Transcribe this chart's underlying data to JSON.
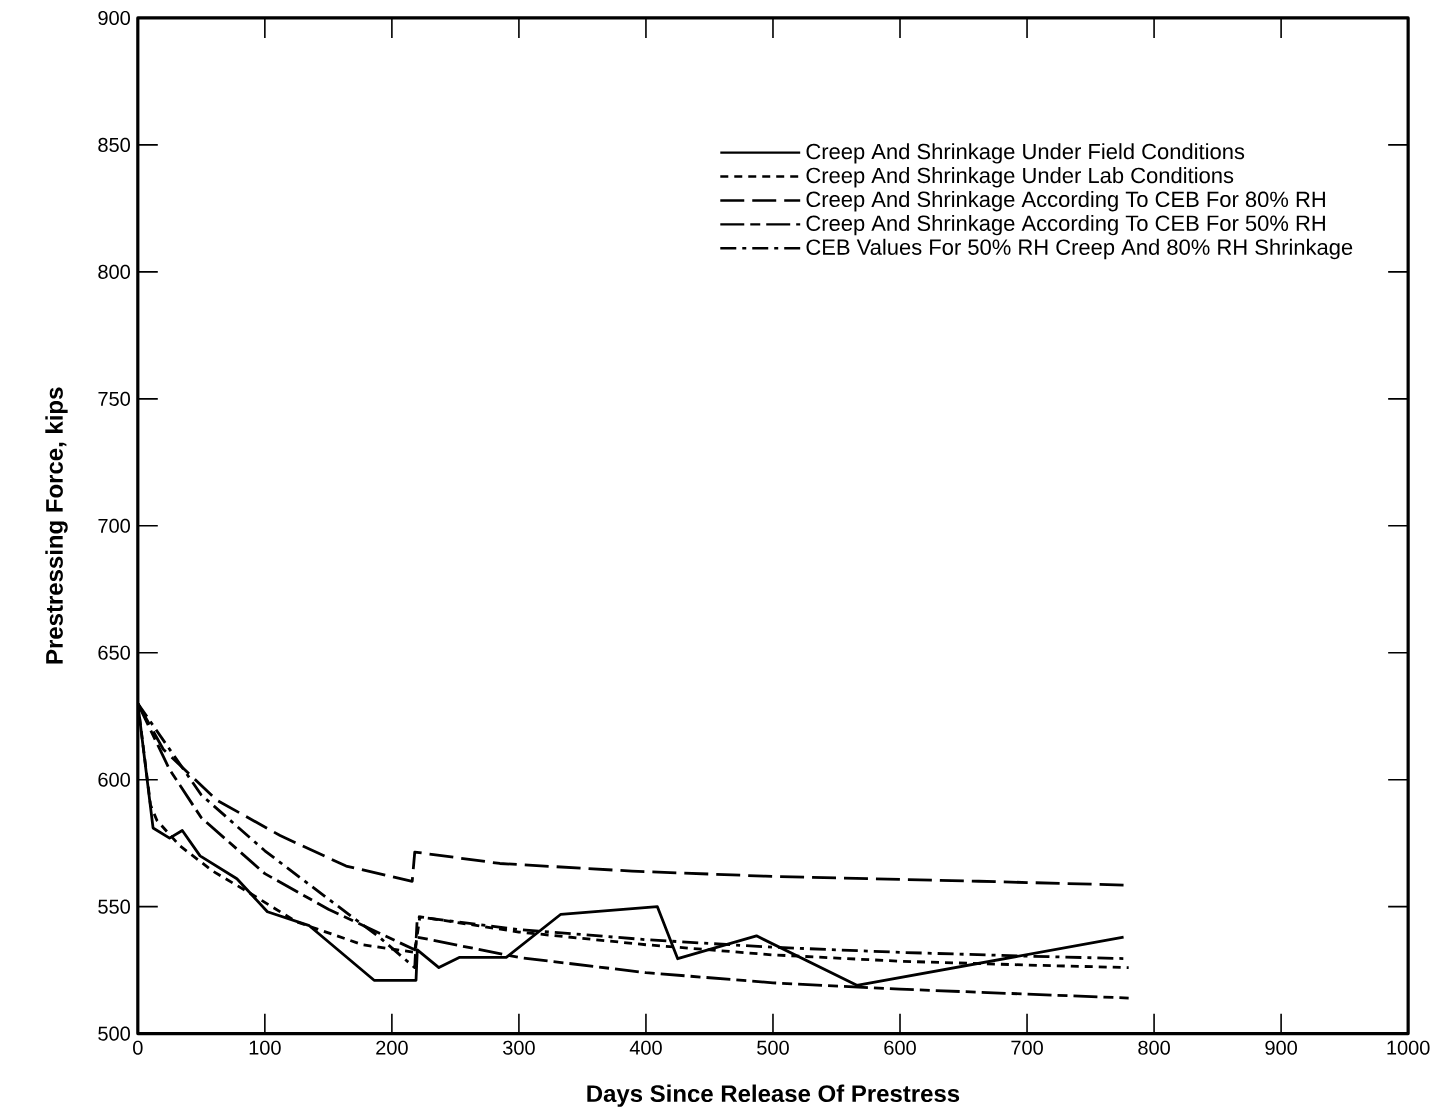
{
  "chart_data": {
    "type": "line",
    "xlabel": "Days Since Release Of Prestress",
    "ylabel": "Prestressing Force, kips",
    "xlim": [
      0,
      1000
    ],
    "ylim": [
      500,
      900
    ],
    "xticks": [
      0,
      100,
      200,
      300,
      400,
      500,
      600,
      700,
      800,
      900,
      1000
    ],
    "yticks": [
      500,
      550,
      600,
      650,
      700,
      750,
      800,
      850,
      900
    ],
    "legend": "top right",
    "grid": false,
    "marker": "none",
    "series": [
      {
        "name": "Creep And Shrinkage Under Field Conditions",
        "color": "#000000",
        "line_style": "solid",
        "x": [
          0,
          12,
          25,
          35,
          49,
          78,
          102,
          135,
          186,
          219,
          220,
          237,
          253,
          290,
          333,
          409,
          425,
          487,
          566,
          776
        ],
        "values": [
          630,
          581,
          577,
          580,
          570,
          561,
          548,
          542.5,
          521,
          521,
          533,
          526,
          530,
          530,
          547,
          550,
          529.5,
          538.5,
          519,
          538
        ]
      },
      {
        "name": "Creep And Shrinkage Under Lab Conditions",
        "color": "#000000",
        "line_style": "dashed",
        "x": [
          0,
          10,
          15,
          33,
          59,
          86,
          125,
          177,
          218,
          222,
          300,
          400,
          500,
          600,
          700,
          780
        ],
        "values": [
          630,
          590,
          584,
          574,
          564,
          556,
          544,
          535,
          532,
          546,
          540,
          535,
          531,
          528.5,
          527,
          526
        ]
      },
      {
        "name": "Creep And Shrinkage According To CEB For 80% RH",
        "color": "#000000",
        "line_style": "longdashed",
        "x": [
          0,
          20,
          62,
          112,
          164,
          216,
          218,
          285,
          389,
          494,
          662,
          777
        ],
        "values": [
          630,
          612,
          592,
          578,
          566,
          560,
          571.5,
          567,
          564,
          562,
          560,
          558.5
        ]
      },
      {
        "name": "Creep And Shrinkage According To CEB For 50% RH",
        "color": "#000000",
        "line_style": "longdashdash",
        "x": [
          0,
          25,
          50,
          100,
          150,
          218,
          220,
          300,
          400,
          500,
          600,
          780
        ],
        "values": [
          630,
          604,
          585,
          563,
          549,
          533,
          538,
          530,
          524,
          520,
          517.5,
          514
        ]
      },
      {
        "name": "CEB Values For 50% RH Creep And 80% RH Shrinkage",
        "color": "#000000",
        "line_style": "dashdot",
        "x": [
          0,
          25,
          50,
          100,
          150,
          190,
          218,
          220,
          300,
          400,
          500,
          600,
          700,
          780
        ],
        "values": [
          630,
          612,
          594,
          572,
          553,
          538,
          526,
          546,
          541,
          537,
          534,
          532,
          530.5,
          529.5
        ]
      }
    ]
  }
}
